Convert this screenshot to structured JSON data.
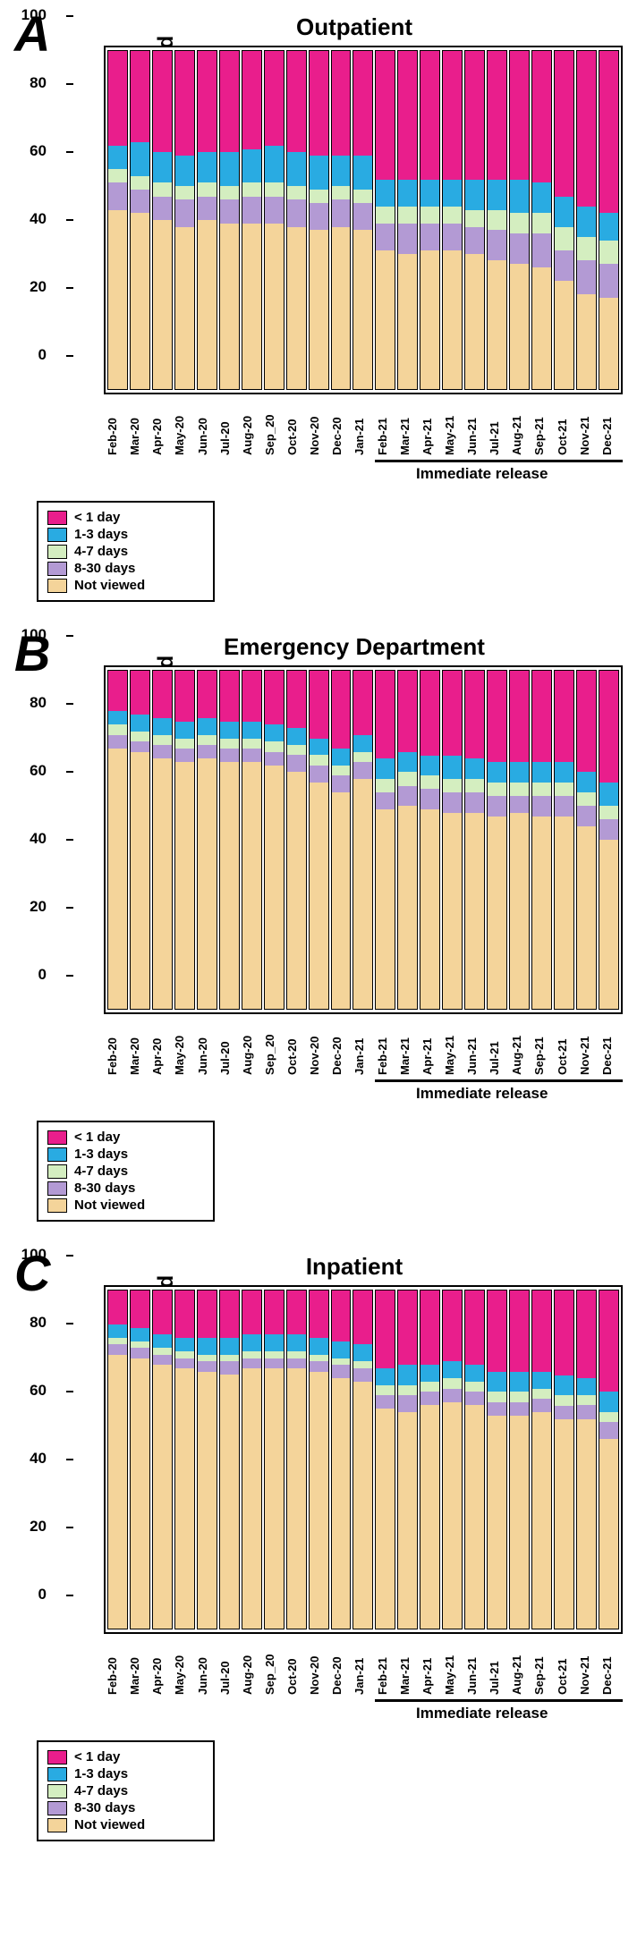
{
  "colors": {
    "lt1day": "#e91e8c",
    "d1_3": "#29abe2",
    "d4_7": "#d4eec0",
    "d8_30": "#b39ad4",
    "notviewed": "#f4d49a"
  },
  "y_label": "% of Results/Reports Viewed",
  "y_ticks": [
    0,
    20,
    40,
    60,
    80,
    100
  ],
  "months": [
    "Feb-20",
    "Mar-20",
    "Apr-20",
    "May-20",
    "Jun-20",
    "Jul-20",
    "Aug-20",
    "Sep_20",
    "Oct-20",
    "Nov-20",
    "Dec-20",
    "Jan-21",
    "Feb-21",
    "Mar-21",
    "Apr-21",
    "May-21",
    "Jun-21",
    "Jul-21",
    "Aug-21",
    "Sep-21",
    "Oct-21",
    "Nov-21",
    "Dec-21"
  ],
  "immediate_label": "Immediate release",
  "immediate_start_index": 12,
  "legend": [
    {
      "key": "lt1day",
      "label": "< 1 day"
    },
    {
      "key": "d1_3",
      "label": "1-3 days"
    },
    {
      "key": "d4_7",
      "label": "4-7 days"
    },
    {
      "key": "d8_30",
      "label": "8-30 days"
    },
    {
      "key": "notviewed",
      "label": "Not viewed"
    }
  ],
  "panels": [
    {
      "letter": "A",
      "title": "Outpatient",
      "data": [
        {
          "nv": 53,
          "d8": 8,
          "d4": 4,
          "d1": 7,
          "lt": 28
        },
        {
          "nv": 52,
          "d8": 7,
          "d4": 4,
          "d1": 10,
          "lt": 27
        },
        {
          "nv": 50,
          "d8": 7,
          "d4": 4,
          "d1": 9,
          "lt": 30
        },
        {
          "nv": 48,
          "d8": 8,
          "d4": 4,
          "d1": 9,
          "lt": 31
        },
        {
          "nv": 50,
          "d8": 7,
          "d4": 4,
          "d1": 9,
          "lt": 30
        },
        {
          "nv": 49,
          "d8": 7,
          "d4": 4,
          "d1": 10,
          "lt": 30
        },
        {
          "nv": 49,
          "d8": 8,
          "d4": 4,
          "d1": 10,
          "lt": 29
        },
        {
          "nv": 49,
          "d8": 8,
          "d4": 4,
          "d1": 11,
          "lt": 28
        },
        {
          "nv": 48,
          "d8": 8,
          "d4": 4,
          "d1": 10,
          "lt": 30
        },
        {
          "nv": 47,
          "d8": 8,
          "d4": 4,
          "d1": 10,
          "lt": 31
        },
        {
          "nv": 48,
          "d8": 8,
          "d4": 4,
          "d1": 9,
          "lt": 31
        },
        {
          "nv": 47,
          "d8": 8,
          "d4": 4,
          "d1": 10,
          "lt": 31
        },
        {
          "nv": 41,
          "d8": 8,
          "d4": 5,
          "d1": 8,
          "lt": 38
        },
        {
          "nv": 40,
          "d8": 9,
          "d4": 5,
          "d1": 8,
          "lt": 38
        },
        {
          "nv": 41,
          "d8": 8,
          "d4": 5,
          "d1": 8,
          "lt": 38
        },
        {
          "nv": 41,
          "d8": 8,
          "d4": 5,
          "d1": 8,
          "lt": 38
        },
        {
          "nv": 40,
          "d8": 8,
          "d4": 5,
          "d1": 9,
          "lt": 38
        },
        {
          "nv": 38,
          "d8": 9,
          "d4": 6,
          "d1": 9,
          "lt": 38
        },
        {
          "nv": 37,
          "d8": 9,
          "d4": 6,
          "d1": 10,
          "lt": 38
        },
        {
          "nv": 36,
          "d8": 10,
          "d4": 6,
          "d1": 9,
          "lt": 39
        },
        {
          "nv": 32,
          "d8": 9,
          "d4": 7,
          "d1": 9,
          "lt": 43
        },
        {
          "nv": 28,
          "d8": 10,
          "d4": 7,
          "d1": 9,
          "lt": 46
        },
        {
          "nv": 27,
          "d8": 10,
          "d4": 7,
          "d1": 8,
          "lt": 48
        }
      ]
    },
    {
      "letter": "B",
      "title": "Emergency Department",
      "data": [
        {
          "nv": 77,
          "d8": 4,
          "d4": 3,
          "d1": 4,
          "lt": 12
        },
        {
          "nv": 76,
          "d8": 3,
          "d4": 3,
          "d1": 5,
          "lt": 13
        },
        {
          "nv": 74,
          "d8": 4,
          "d4": 3,
          "d1": 5,
          "lt": 14
        },
        {
          "nv": 73,
          "d8": 4,
          "d4": 3,
          "d1": 5,
          "lt": 15
        },
        {
          "nv": 74,
          "d8": 4,
          "d4": 3,
          "d1": 5,
          "lt": 14
        },
        {
          "nv": 73,
          "d8": 4,
          "d4": 3,
          "d1": 5,
          "lt": 15
        },
        {
          "nv": 73,
          "d8": 4,
          "d4": 3,
          "d1": 5,
          "lt": 15
        },
        {
          "nv": 72,
          "d8": 4,
          "d4": 3,
          "d1": 5,
          "lt": 16
        },
        {
          "nv": 70,
          "d8": 5,
          "d4": 3,
          "d1": 5,
          "lt": 17
        },
        {
          "nv": 67,
          "d8": 5,
          "d4": 3,
          "d1": 5,
          "lt": 20
        },
        {
          "nv": 64,
          "d8": 5,
          "d4": 3,
          "d1": 5,
          "lt": 23
        },
        {
          "nv": 68,
          "d8": 5,
          "d4": 3,
          "d1": 5,
          "lt": 19
        },
        {
          "nv": 59,
          "d8": 5,
          "d4": 4,
          "d1": 6,
          "lt": 26
        },
        {
          "nv": 60,
          "d8": 6,
          "d4": 4,
          "d1": 6,
          "lt": 24
        },
        {
          "nv": 59,
          "d8": 6,
          "d4": 4,
          "d1": 6,
          "lt": 25
        },
        {
          "nv": 58,
          "d8": 6,
          "d4": 4,
          "d1": 7,
          "lt": 25
        },
        {
          "nv": 58,
          "d8": 6,
          "d4": 4,
          "d1": 6,
          "lt": 26
        },
        {
          "nv": 57,
          "d8": 6,
          "d4": 4,
          "d1": 6,
          "lt": 27
        },
        {
          "nv": 58,
          "d8": 5,
          "d4": 4,
          "d1": 6,
          "lt": 27
        },
        {
          "nv": 57,
          "d8": 6,
          "d4": 4,
          "d1": 6,
          "lt": 27
        },
        {
          "nv": 57,
          "d8": 6,
          "d4": 4,
          "d1": 6,
          "lt": 27
        },
        {
          "nv": 54,
          "d8": 6,
          "d4": 4,
          "d1": 6,
          "lt": 30
        },
        {
          "nv": 50,
          "d8": 6,
          "d4": 4,
          "d1": 7,
          "lt": 33
        }
      ]
    },
    {
      "letter": "C",
      "title": "Inpatient",
      "data": [
        {
          "nv": 81,
          "d8": 3,
          "d4": 2,
          "d1": 4,
          "lt": 10
        },
        {
          "nv": 80,
          "d8": 3,
          "d4": 2,
          "d1": 4,
          "lt": 11
        },
        {
          "nv": 78,
          "d8": 3,
          "d4": 2,
          "d1": 4,
          "lt": 13
        },
        {
          "nv": 77,
          "d8": 3,
          "d4": 2,
          "d1": 4,
          "lt": 14
        },
        {
          "nv": 76,
          "d8": 3,
          "d4": 2,
          "d1": 5,
          "lt": 14
        },
        {
          "nv": 75,
          "d8": 4,
          "d4": 2,
          "d1": 5,
          "lt": 14
        },
        {
          "nv": 77,
          "d8": 3,
          "d4": 2,
          "d1": 5,
          "lt": 13
        },
        {
          "nv": 77,
          "d8": 3,
          "d4": 2,
          "d1": 5,
          "lt": 13
        },
        {
          "nv": 77,
          "d8": 3,
          "d4": 2,
          "d1": 5,
          "lt": 13
        },
        {
          "nv": 76,
          "d8": 3,
          "d4": 2,
          "d1": 5,
          "lt": 14
        },
        {
          "nv": 74,
          "d8": 4,
          "d4": 2,
          "d1": 5,
          "lt": 15
        },
        {
          "nv": 73,
          "d8": 4,
          "d4": 2,
          "d1": 5,
          "lt": 16
        },
        {
          "nv": 65,
          "d8": 4,
          "d4": 3,
          "d1": 5,
          "lt": 23
        },
        {
          "nv": 64,
          "d8": 5,
          "d4": 3,
          "d1": 6,
          "lt": 22
        },
        {
          "nv": 66,
          "d8": 4,
          "d4": 3,
          "d1": 5,
          "lt": 22
        },
        {
          "nv": 67,
          "d8": 4,
          "d4": 3,
          "d1": 5,
          "lt": 21
        },
        {
          "nv": 66,
          "d8": 4,
          "d4": 3,
          "d1": 5,
          "lt": 22
        },
        {
          "nv": 63,
          "d8": 4,
          "d4": 3,
          "d1": 6,
          "lt": 24
        },
        {
          "nv": 63,
          "d8": 4,
          "d4": 3,
          "d1": 6,
          "lt": 24
        },
        {
          "nv": 64,
          "d8": 4,
          "d4": 3,
          "d1": 5,
          "lt": 24
        },
        {
          "nv": 62,
          "d8": 4,
          "d4": 3,
          "d1": 6,
          "lt": 25
        },
        {
          "nv": 62,
          "d8": 4,
          "d4": 3,
          "d1": 5,
          "lt": 26
        },
        {
          "nv": 56,
          "d8": 5,
          "d4": 3,
          "d1": 6,
          "lt": 30
        }
      ]
    }
  ]
}
